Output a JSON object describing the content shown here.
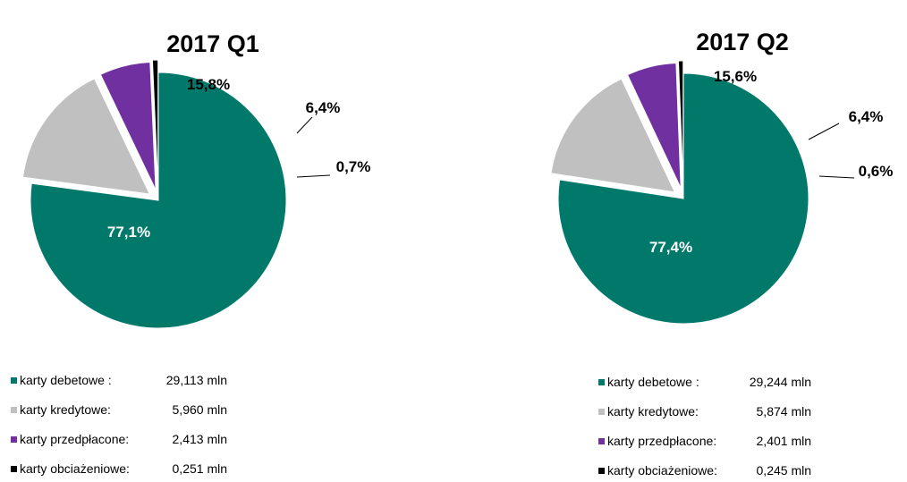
{
  "colors": {
    "karty_debetowe": "#00796b",
    "karty_kredytowe": "#c0c0c0",
    "karty_przedplacone": "#7030a0",
    "karty_obciazeniowe": "#000000"
  },
  "chart_data": [
    {
      "type": "pie",
      "title": "2017 Q1",
      "categories": [
        "karty debetowe",
        "karty kredytowe",
        "karty przedpłacone",
        "karty obciażeniowe"
      ],
      "values": [
        77.1,
        15.8,
        6.4,
        0.7
      ],
      "labels": [
        "77,1%",
        "15,8%",
        "6,4%",
        "0,7%"
      ],
      "exploded": [
        false,
        true,
        true,
        true
      ],
      "legend": [
        {
          "name": "karty debetowe  :",
          "value": "29,113 mln"
        },
        {
          "name": "karty kredytowe:",
          "value": "5,960 mln"
        },
        {
          "name": "karty przedpłacone:",
          "value": "2,413 mln"
        },
        {
          "name": "karty obciażeniowe:",
          "value": "0,251 mln"
        }
      ]
    },
    {
      "type": "pie",
      "title": "2017 Q2",
      "categories": [
        "karty debetowe",
        "karty kredytowe",
        "karty przedpłacone",
        "karty obciażeniowe"
      ],
      "values": [
        77.4,
        15.6,
        6.4,
        0.6
      ],
      "labels": [
        "77,4%",
        "15,6%",
        "6,4%",
        "0,6%"
      ],
      "exploded": [
        false,
        true,
        true,
        true
      ],
      "legend": [
        {
          "name": "karty debetowe  :",
          "value": "29,244 mln"
        },
        {
          "name": "karty kredytowe:",
          "value": "5,874 mln"
        },
        {
          "name": "karty przedpłacone:",
          "value": "2,401 mln"
        },
        {
          "name": "karty obciażeniowe:",
          "value": "0,245 mln"
        }
      ]
    }
  ]
}
